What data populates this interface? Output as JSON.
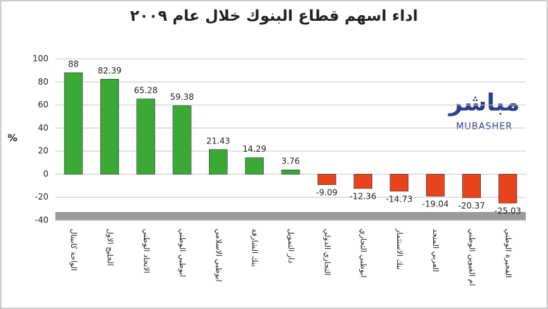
{
  "chart_data": {
    "type": "bar",
    "title": "اداء اسهم قطاع البنوك خلال عام ٢٠٠٩",
    "ylabel": "%",
    "logo": {
      "arabic": "مباشر",
      "latin": "MUBASHER"
    },
    "categories": [
      "الواحة كابيتال",
      "الخليج الاول",
      "الاتحاد الوطني",
      "ابوظبي الوطني",
      "ابوظبي الاسلامي",
      "بنك الشارقة",
      "دار التمويل",
      "التجاري الدولي",
      "ابوظبي التجاري",
      "بنك الاستثمار",
      "العربي المتحد",
      "ام القيوين الوطني",
      "الفجيرة الوطني"
    ],
    "values": [
      88,
      82.39,
      65.28,
      59.38,
      21.43,
      14.29,
      3.76,
      -9.09,
      -12.36,
      -14.73,
      -19.04,
      -20.37,
      -25.03
    ],
    "positive_color": "#3aa935",
    "negative_color": "#e8431c",
    "ylim": [
      -40,
      100
    ],
    "yticks": [
      -40,
      -20,
      0,
      20,
      40,
      60,
      80,
      100
    ],
    "grid": true
  }
}
